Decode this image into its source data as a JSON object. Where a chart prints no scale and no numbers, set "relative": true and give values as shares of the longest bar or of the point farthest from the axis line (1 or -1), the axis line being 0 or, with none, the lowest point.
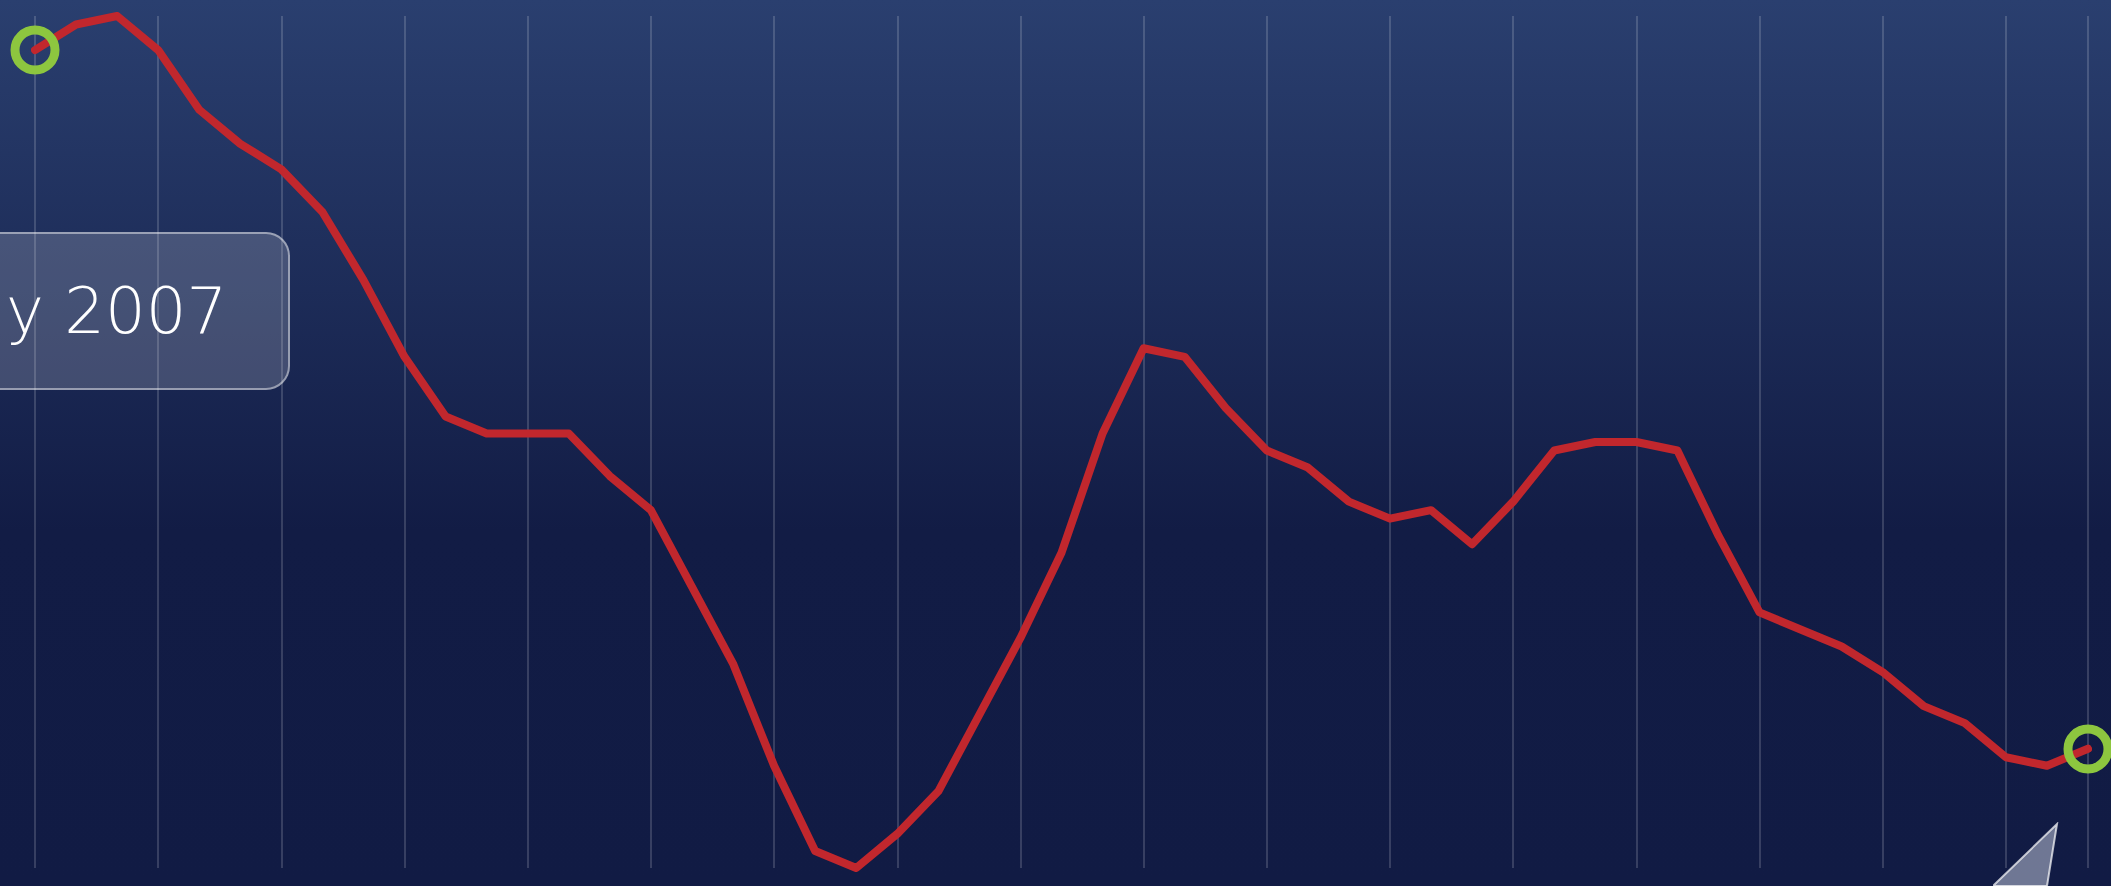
{
  "chart_data": {
    "type": "line",
    "relative": true,
    "grid": "x",
    "line_style": "solid",
    "annotations": [
      "y 2007"
    ],
    "categories": [
      null,
      null,
      null,
      null,
      null,
      null,
      null,
      null,
      null,
      null,
      null,
      null,
      null,
      null,
      null,
      null,
      null,
      null,
      null,
      null,
      null,
      null,
      null,
      null,
      null,
      null,
      null,
      null,
      null,
      null,
      null,
      null,
      null,
      null,
      null,
      null,
      null,
      null,
      null,
      null,
      null,
      null,
      null,
      null,
      null,
      null,
      null,
      null,
      null,
      null,
      null
    ],
    "series": [
      {
        "color": "#c1272d",
        "values": [
          0.96,
          0.99,
          1.0,
          0.96,
          0.89,
          0.85,
          0.82,
          0.77,
          0.69,
          0.6,
          0.53,
          0.51,
          0.51,
          0.51,
          0.46,
          0.42,
          0.33,
          0.24,
          0.12,
          0.02,
          0,
          0.04,
          0.09,
          0.18,
          0.27,
          0.37,
          0.51,
          0.61,
          0.6,
          0.54,
          0.49,
          0.47,
          0.43,
          0.41,
          0.42,
          0.38,
          0.43,
          0.49,
          0.5,
          0.5,
          0.49,
          0.39,
          0.3,
          0.28,
          0.26,
          0.23,
          0.19,
          0.17,
          0.13,
          0.12,
          0.14
        ]
      }
    ]
  }
}
